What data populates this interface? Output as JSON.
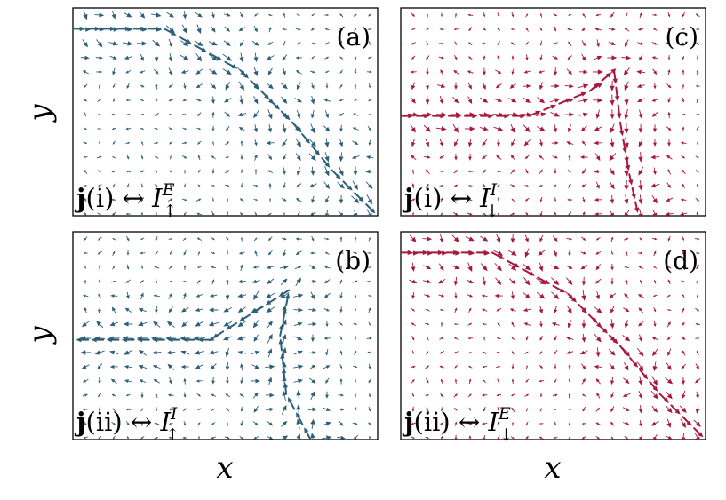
{
  "chart_data": {
    "type": "quiver",
    "layout": "2x2 grid",
    "xlabel": "x",
    "ylabel": "y",
    "colors": {
      "blue": "#2d5f7a",
      "red": "#a8183a"
    },
    "panels": [
      {
        "id": "a",
        "tag": "(a)",
        "color": "blue",
        "pattern": "edge-top-to-corner",
        "label": {
          "bold": "j",
          "arg": "(i)",
          "arrow": "↔",
          "I": "I",
          "sub": "↑",
          "sup": "E"
        }
      },
      {
        "id": "c",
        "tag": "(c)",
        "color": "red",
        "pattern": "interface-left-to-bottom",
        "label": {
          "bold": "j",
          "arg": "(i)",
          "arrow": "↔",
          "I": "I",
          "sub": "↓",
          "sup": "I"
        }
      },
      {
        "id": "b",
        "tag": "(b)",
        "color": "blue",
        "pattern": "interface-bottom-to-left",
        "label": {
          "bold": "j",
          "arg": "(ii)",
          "arrow": "↔",
          "I": "I",
          "sub": "↑",
          "sup": "I"
        }
      },
      {
        "id": "d",
        "tag": "(d)",
        "color": "red",
        "pattern": "edge-top-to-corner",
        "label": {
          "bold": "j",
          "arg": "(ii)",
          "arrow": "↔",
          "I": "I",
          "sub": "↓",
          "sup": "E"
        }
      }
    ]
  }
}
